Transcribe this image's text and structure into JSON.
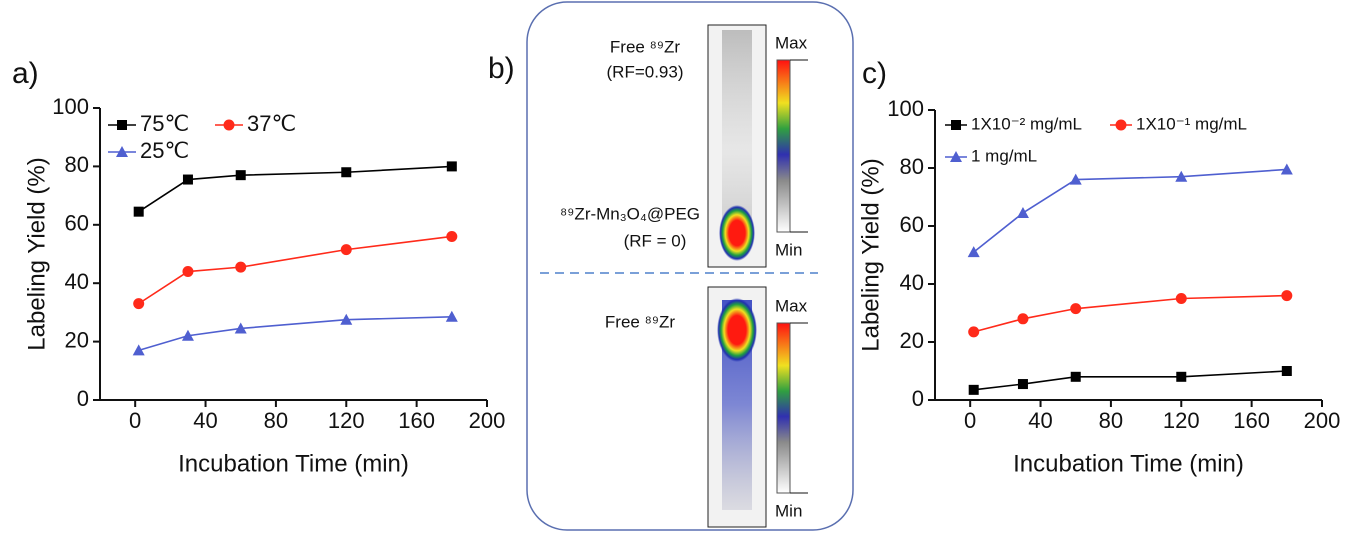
{
  "chart_data": [
    {
      "type": "line",
      "panel": "a)",
      "x_label": "Incubation Time (min)",
      "y_label": "Labeling Yield (%)",
      "x": [
        2,
        30,
        60,
        120,
        180
      ],
      "xlim": [
        -20,
        200
      ],
      "xticks": [
        0,
        40,
        80,
        120,
        160,
        200
      ],
      "ylim": [
        0,
        100
      ],
      "yticks": [
        0,
        20,
        40,
        60,
        80,
        100
      ],
      "series": [
        {
          "name": "75℃",
          "color": "#000000",
          "marker": "square",
          "values": [
            64.5,
            75.5,
            77,
            78,
            80
          ]
        },
        {
          "name": "37℃",
          "color": "#ff2a1a",
          "marker": "circle",
          "values": [
            33,
            44,
            45.5,
            51.5,
            56
          ]
        },
        {
          "name": "25℃",
          "color": "#4f5fd0",
          "marker": "triangle",
          "values": [
            17,
            22,
            24.5,
            27.5,
            28.5
          ]
        }
      ]
    },
    {
      "type": "line",
      "panel": "c)",
      "x_label": "Incubation Time (min)",
      "y_label": "Labeling Yield (%)",
      "x": [
        2,
        30,
        60,
        120,
        180
      ],
      "xlim": [
        -20,
        200
      ],
      "xticks": [
        0,
        40,
        80,
        120,
        160,
        200
      ],
      "ylim": [
        0,
        100
      ],
      "yticks": [
        0,
        20,
        40,
        60,
        80,
        100
      ],
      "series": [
        {
          "name": "1X10⁻² mg/mL",
          "color": "#000000",
          "marker": "square",
          "values": [
            3.5,
            5.5,
            8,
            8,
            10
          ]
        },
        {
          "name": "1X10⁻¹ mg/mL",
          "color": "#ff2a1a",
          "marker": "circle",
          "values": [
            23.5,
            28,
            31.5,
            35,
            36
          ]
        },
        {
          "name": "1 mg/mL",
          "color": "#4f5fd0",
          "marker": "triangle",
          "values": [
            51,
            64.5,
            76,
            77,
            79.5
          ]
        }
      ]
    }
  ],
  "panel_b": {
    "label": "b)",
    "top_label": "Free ⁸⁹Zr",
    "top_rf": "(RF=0.93)",
    "mid_label": "⁸⁹Zr-Mn₃O₄@PEG",
    "mid_rf": "(RF = 0)",
    "bottom_label": "Free ⁸⁹Zr",
    "max_top": "Max",
    "min_top": "Min",
    "max_bottom": "Max",
    "min_bottom": "Min"
  }
}
